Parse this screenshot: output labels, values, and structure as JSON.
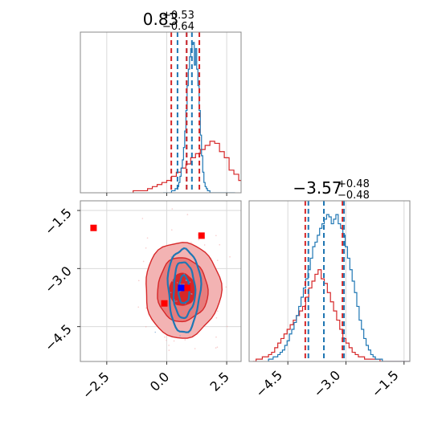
{
  "chart_data": {
    "type": "corner",
    "parameters": [
      "p1",
      "p2"
    ],
    "series": [
      {
        "name": "",
        "color": "#1f77b4"
      },
      {
        "name": "",
        "color": "#d62728"
      }
    ],
    "panels": [
      {
        "id": "p1-marginal",
        "type": "histogram",
        "title_value": "0.83",
        "title_plus": "+0.53",
        "title_minus": "−0.64",
        "xlim": [
          -3.6,
          3.1
        ],
        "xticks": [
          -2.5,
          0.0,
          2.5
        ],
        "quantile_lines": {
          "#1f77b4": [
            0.45,
            0.83,
            1.05
          ],
          "#d62728": [
            0.19,
            0.83,
            1.36
          ]
        },
        "blue_hist": {
          "x0": -0.15,
          "bin_width": 0.05,
          "values": [
            0,
            0,
            0,
            0,
            0,
            0,
            0,
            1,
            1,
            1,
            2,
            2,
            3,
            5,
            8,
            12,
            16,
            22,
            30,
            40,
            52,
            60,
            66,
            70,
            72,
            73,
            62,
            70,
            60,
            52,
            40,
            28,
            18,
            10,
            5,
            3,
            2,
            1,
            1,
            0,
            0,
            0,
            0,
            0,
            0,
            0,
            0,
            0,
            0,
            0,
            0,
            0,
            0,
            0,
            0,
            0,
            0,
            0,
            0,
            0
          ]
        },
        "red_hist": {
          "x0": -1.4,
          "bin_width": 0.2,
          "values": [
            1,
            1,
            1,
            2,
            3,
            4,
            5,
            6,
            8,
            10,
            12,
            14,
            17,
            19,
            21,
            23,
            25,
            24,
            20,
            17,
            11,
            9,
            6,
            4,
            3,
            2,
            1,
            1
          ]
        },
        "ylim": [
          0,
          78
        ]
      },
      {
        "id": "p2-marginal",
        "type": "histogram",
        "title_value": "−3.57",
        "title_plus": "+0.48",
        "title_minus": "−0.48",
        "xlim": [
          -5.5,
          -1.35
        ],
        "xticks": [
          -4.5,
          -3.0,
          -1.5
        ],
        "xtick_labels": [
          "−4.5",
          "−3.0",
          "−1.5"
        ],
        "quantile_lines": {
          "#d62728": [
            -4.05,
            -3.57,
            -3.09
          ],
          "#1f77b4": [
            -3.97,
            -3.57,
            -3.05
          ]
        },
        "blue_hist": {
          "x0": -5.0,
          "bin_width": 0.06,
          "values": [
            1,
            1,
            2,
            2,
            3,
            4,
            5,
            7,
            9,
            12,
            14,
            17,
            20,
            24,
            28,
            32,
            36,
            40,
            45,
            50,
            52,
            55,
            58,
            60,
            62,
            64,
            63,
            60,
            62,
            64,
            60,
            58,
            55,
            50,
            45,
            40,
            35,
            30,
            24,
            18,
            14,
            10,
            7,
            5,
            3,
            2,
            1,
            1,
            1,
            0,
            0,
            0,
            0,
            0,
            0,
            0,
            0,
            0,
            0,
            0,
            0,
            0,
            0,
            0,
            0,
            0
          ]
        },
        "red_hist": {
          "x0": -5.4,
          "bin_width": 0.08,
          "values": [
            0,
            1,
            1,
            2,
            2,
            3,
            4,
            6,
            8,
            10,
            12,
            14,
            16,
            18,
            20,
            22,
            24,
            28,
            32,
            35,
            38,
            40,
            36,
            34,
            30,
            26,
            22,
            18,
            14,
            10,
            8,
            6,
            4,
            3,
            2,
            2,
            1,
            1,
            1,
            1,
            1,
            0,
            0,
            0,
            0,
            0,
            0,
            0,
            0,
            0,
            0,
            0
          ]
        },
        "ylim": [
          0,
          70
        ]
      },
      {
        "id": "joint",
        "type": "2d-density",
        "xlim": [
          -3.6,
          3.1
        ],
        "ylim": [
          -5.4,
          -1.25
        ],
        "xticks": [
          -2.5,
          0.0,
          2.5
        ],
        "yticks": [
          -1.5,
          -3.0,
          -4.5
        ],
        "xtick_labels": [
          "−2.5",
          "0.0",
          "2.5"
        ],
        "ytick_labels": [
          "−1.5",
          "−3.0",
          "−4.5"
        ],
        "red_density": {
          "center": [
            0.65,
            -3.55
          ],
          "sigma": [
            0.7,
            0.55
          ],
          "levels": [
            1.0,
            2.0,
            3.0
          ]
        },
        "blue_density": {
          "center": [
            0.72,
            -3.55
          ],
          "sigma": [
            0.28,
            0.45
          ],
          "levels": [
            1.0,
            2.0,
            3.0
          ]
        },
        "red_markers": [
          [
            -3.05,
            -1.95
          ],
          [
            1.45,
            -2.15
          ],
          [
            -0.1,
            -3.9
          ],
          [
            0.85,
            -3.5
          ]
        ],
        "blue_markers": [
          [
            0.6,
            -3.5
          ]
        ]
      }
    ],
    "colors": {
      "blue": "#1f77b4",
      "red": "#d62728",
      "axis": "#888888",
      "grid": "#d9d9d9"
    }
  }
}
